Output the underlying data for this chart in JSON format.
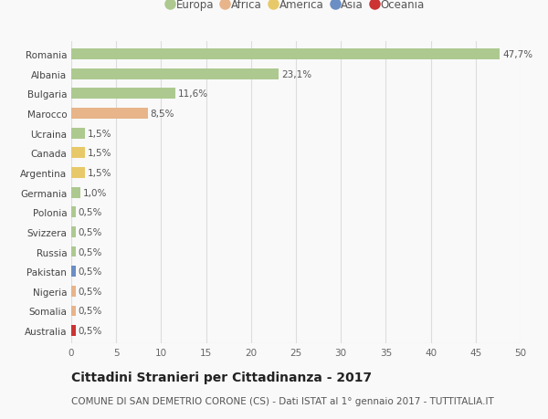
{
  "countries": [
    "Romania",
    "Albania",
    "Bulgaria",
    "Marocco",
    "Ucraina",
    "Canada",
    "Argentina",
    "Germania",
    "Polonia",
    "Svizzera",
    "Russia",
    "Pakistan",
    "Nigeria",
    "Somalia",
    "Australia"
  ],
  "values": [
    47.7,
    23.1,
    11.6,
    8.5,
    1.5,
    1.5,
    1.5,
    1.0,
    0.5,
    0.5,
    0.5,
    0.5,
    0.5,
    0.5,
    0.5
  ],
  "labels": [
    "47,7%",
    "23,1%",
    "11,6%",
    "8,5%",
    "1,5%",
    "1,5%",
    "1,5%",
    "1,0%",
    "0,5%",
    "0,5%",
    "0,5%",
    "0,5%",
    "0,5%",
    "0,5%",
    "0,5%"
  ],
  "colors": [
    "#adc990",
    "#adc990",
    "#adc990",
    "#e8b48a",
    "#adc990",
    "#e8c96a",
    "#e8c96a",
    "#adc990",
    "#adc990",
    "#adc990",
    "#adc990",
    "#6b8ec4",
    "#e8b48a",
    "#e8b48a",
    "#cc3333"
  ],
  "continent_colors": {
    "Europa": "#adc990",
    "Africa": "#e8b48a",
    "America": "#e8c96a",
    "Asia": "#6b8ec4",
    "Oceania": "#cc3333"
  },
  "xlim": [
    0,
    50
  ],
  "xticks": [
    0,
    5,
    10,
    15,
    20,
    25,
    30,
    35,
    40,
    45,
    50
  ],
  "title": "Cittadini Stranieri per Cittadinanza - 2017",
  "subtitle": "COMUNE DI SAN DEMETRIO CORONE (CS) - Dati ISTAT al 1° gennaio 2017 - TUTTITALIA.IT",
  "bg_color": "#f9f9f9",
  "grid_color": "#dddddd",
  "bar_height": 0.55,
  "title_fontsize": 10,
  "subtitle_fontsize": 7.5,
  "tick_fontsize": 7.5,
  "label_fontsize": 7.5,
  "legend_fontsize": 8.5
}
